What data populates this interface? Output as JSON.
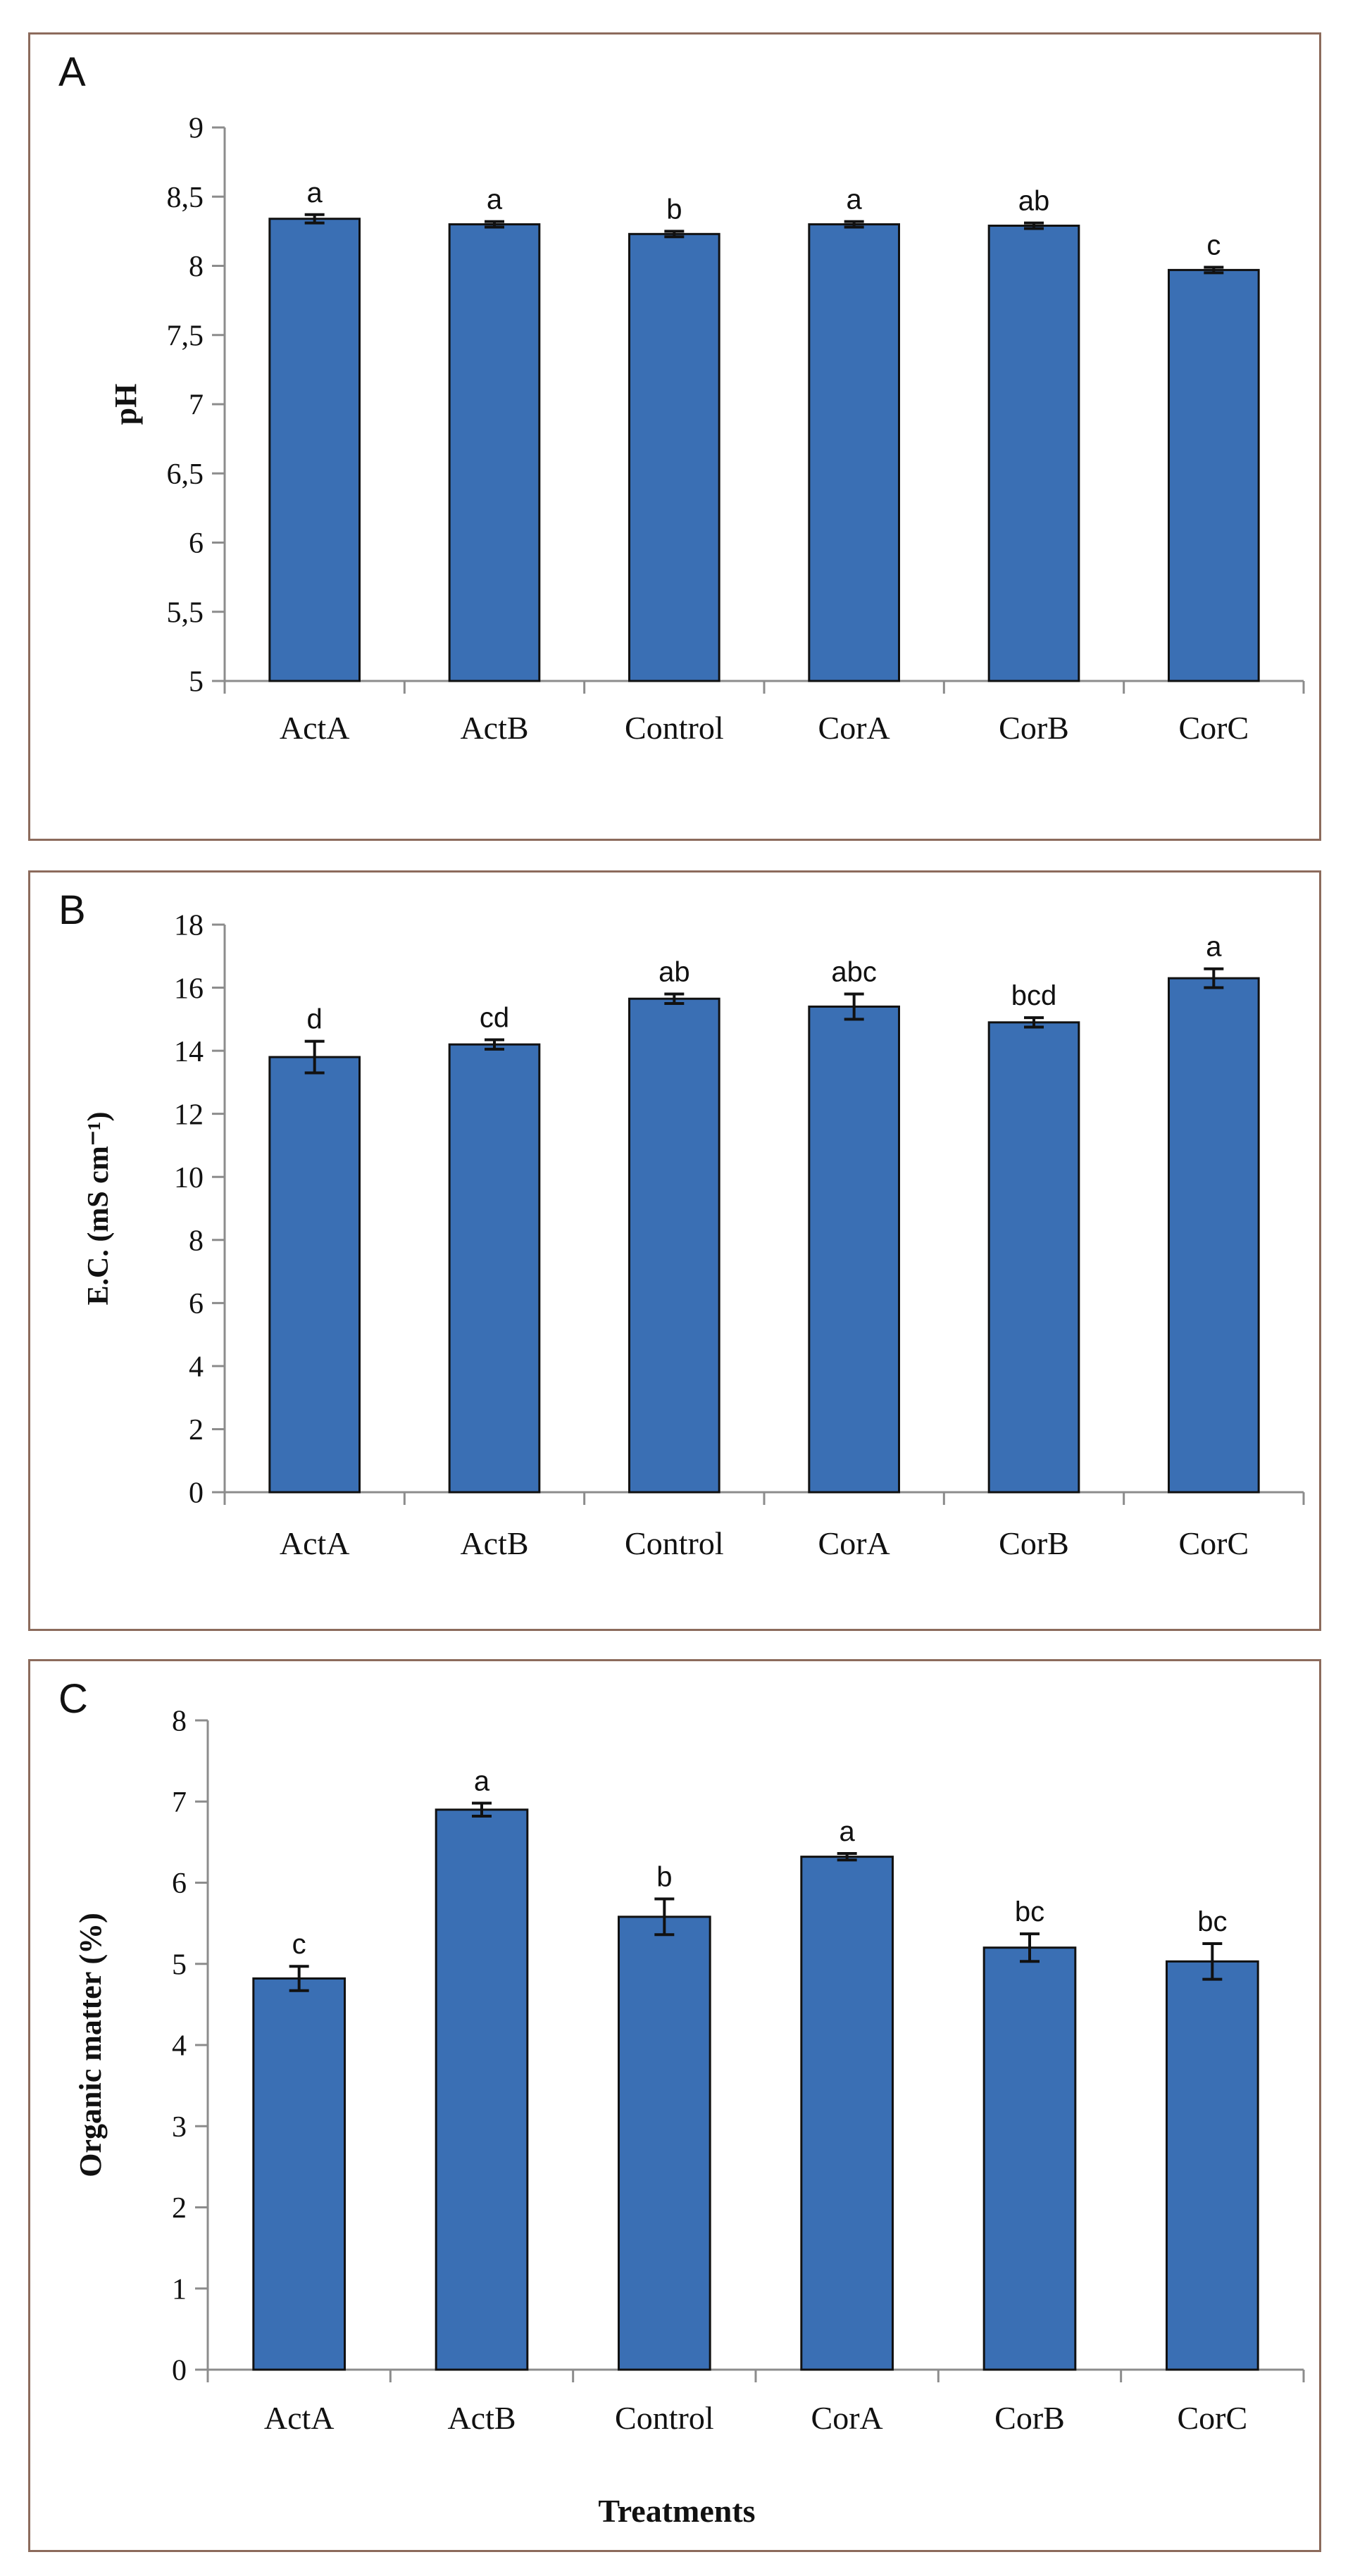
{
  "figure": {
    "x_axis_title": "Treatments"
  },
  "chart_data": [
    {
      "type": "bar",
      "panel": "A",
      "ylabel": "pH",
      "xlabel": "",
      "ylim": [
        5,
        9
      ],
      "ytick_values": [
        5,
        5.5,
        6,
        6.5,
        7,
        7.5,
        8,
        8.5,
        9
      ],
      "ytick_labels": [
        "5",
        "5,5",
        "6",
        "6,5",
        "7",
        "7,5",
        "8",
        "8,5",
        "9"
      ],
      "categories": [
        "ActA",
        "ActB",
        "Control",
        "CorA",
        "CorB",
        "CorC"
      ],
      "values": [
        8.34,
        8.3,
        8.23,
        8.3,
        8.29,
        7.97
      ],
      "errors": [
        0.03,
        0.02,
        0.02,
        0.02,
        0.02,
        0.02
      ],
      "significance": [
        "a",
        "a",
        "b",
        "a",
        "ab",
        "c"
      ],
      "bar_color": "#3a6fb4",
      "grid": false
    },
    {
      "type": "bar",
      "panel": "B",
      "ylabel": "E.C. (mS cm⁻¹)",
      "xlabel": "",
      "ylim": [
        0,
        18
      ],
      "ytick_values": [
        0,
        2,
        4,
        6,
        8,
        10,
        12,
        14,
        16,
        18
      ],
      "ytick_labels": [
        "0",
        "2",
        "4",
        "6",
        "8",
        "10",
        "12",
        "14",
        "16",
        "18"
      ],
      "categories": [
        "ActA",
        "ActB",
        "Control",
        "CorA",
        "CorB",
        "CorC"
      ],
      "values": [
        13.8,
        14.2,
        15.65,
        15.4,
        14.9,
        16.3
      ],
      "errors": [
        0.5,
        0.15,
        0.15,
        0.4,
        0.15,
        0.3
      ],
      "significance": [
        "d",
        "cd",
        "ab",
        "abc",
        "bcd",
        "a"
      ],
      "bar_color": "#3a6fb4",
      "grid": false
    },
    {
      "type": "bar",
      "panel": "C",
      "ylabel": "Organic matter (%)",
      "xlabel": "Treatments",
      "ylim": [
        0,
        8
      ],
      "ytick_values": [
        0,
        1,
        2,
        3,
        4,
        5,
        6,
        7,
        8
      ],
      "ytick_labels": [
        "0",
        "1",
        "2",
        "3",
        "4",
        "5",
        "6",
        "7",
        "8"
      ],
      "categories": [
        "ActA",
        "ActB",
        "Control",
        "CorA",
        "CorB",
        "CorC"
      ],
      "values": [
        4.82,
        6.9,
        5.58,
        6.32,
        5.2,
        5.03
      ],
      "errors": [
        0.15,
        0.08,
        0.22,
        0.04,
        0.17,
        0.22
      ],
      "significance": [
        "c",
        "a",
        "b",
        "a",
        "bc",
        "bc"
      ],
      "bar_color": "#3a6fb4",
      "grid": false
    }
  ]
}
